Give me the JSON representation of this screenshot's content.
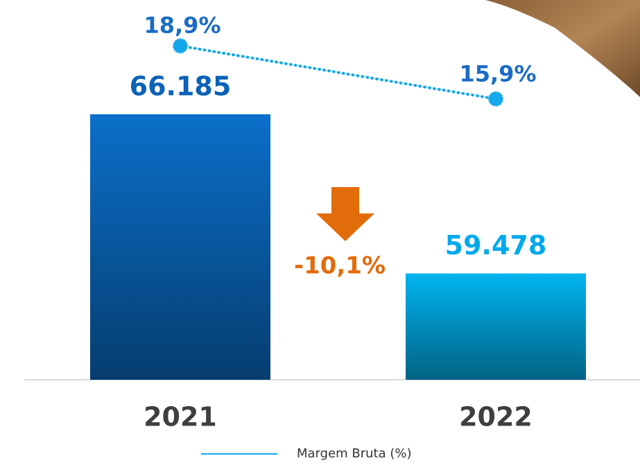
{
  "chart_data": {
    "type": "bar",
    "categories": [
      "2021",
      "2022"
    ],
    "series": [
      {
        "colors": [
          "#0b6fca",
          "#00b4f0"
        ],
        "values": [
          66185,
          59478
        ],
        "value_labels": [
          "66.185",
          "59.478"
        ],
        "label_colors": [
          "#0b62b8",
          "#00a9ec"
        ]
      },
      {
        "name": "Margem Bruta (%)",
        "type": "line",
        "axis": "y2",
        "color": "#14a8ea",
        "label_color": "#1a6cc4",
        "values": [
          18.9,
          15.9
        ],
        "value_labels": [
          "18,9%",
          "15,9%"
        ]
      }
    ],
    "annotation": "-10,1%",
    "annotation_color": "#e36c0a",
    "ylim": [
      55000,
      71000
    ],
    "y2lim": [
      0,
      21.5
    ],
    "legend": "bottom"
  }
}
